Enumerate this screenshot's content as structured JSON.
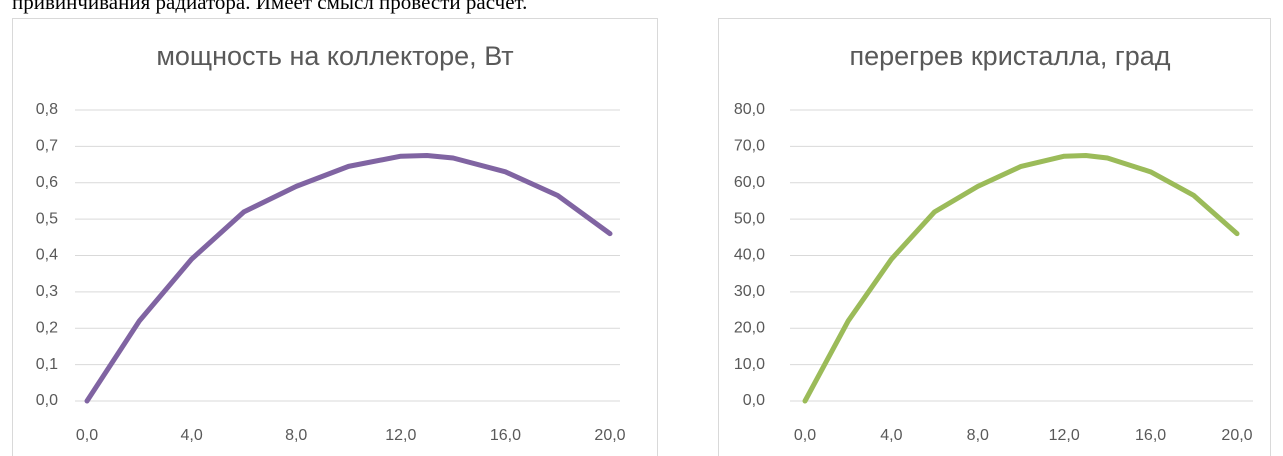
{
  "text": "привинчивания радиатора. Имеет смысл провести расчёт.",
  "chart_data": [
    {
      "type": "line",
      "title": "мощность на коллекторе, Вт",
      "x": [
        0,
        2,
        4,
        6,
        8,
        10,
        12,
        13,
        14,
        16,
        18,
        20
      ],
      "series": [
        {
          "color": "#8064a2",
          "values": [
            0,
            0.22,
            0.39,
            0.52,
            0.59,
            0.645,
            0.673,
            0.675,
            0.668,
            0.63,
            0.565,
            0.46
          ]
        }
      ],
      "xlim": [
        0,
        20
      ],
      "xticks": [
        {
          "value": 0,
          "label": "0,0"
        },
        {
          "value": 4,
          "label": "4,0"
        },
        {
          "value": 8,
          "label": "8,0"
        },
        {
          "value": 12,
          "label": "12,0"
        },
        {
          "value": 16,
          "label": "16,0"
        },
        {
          "value": 20,
          "label": "20,0"
        }
      ],
      "ylim": [
        0,
        0.8
      ],
      "yticks": [
        {
          "value": 0,
          "label": "0,0"
        },
        {
          "value": 0.1,
          "label": "0,1"
        },
        {
          "value": 0.2,
          "label": "0,2"
        },
        {
          "value": 0.3,
          "label": "0,3"
        },
        {
          "value": 0.4,
          "label": "0,4"
        },
        {
          "value": 0.5,
          "label": "0,5"
        },
        {
          "value": 0.6,
          "label": "0,6"
        },
        {
          "value": 0.7,
          "label": "0,7"
        },
        {
          "value": 0.8,
          "label": "0,8"
        }
      ],
      "grid": true
    },
    {
      "type": "line",
      "title": "перегрев кристалла, град",
      "x": [
        0,
        2,
        4,
        6,
        8,
        10,
        12,
        13,
        14,
        16,
        18,
        20
      ],
      "series": [
        {
          "color": "#9bbb59",
          "values": [
            0,
            22,
            39,
            52,
            59,
            64.5,
            67.3,
            67.5,
            66.8,
            63,
            56.5,
            46
          ]
        }
      ],
      "xlim": [
        0,
        20
      ],
      "xticks": [
        {
          "value": 0,
          "label": "0,0"
        },
        {
          "value": 4,
          "label": "4,0"
        },
        {
          "value": 8,
          "label": "8,0"
        },
        {
          "value": 12,
          "label": "12,0"
        },
        {
          "value": 16,
          "label": "16,0"
        },
        {
          "value": 20,
          "label": "20,0"
        }
      ],
      "ylim": [
        0,
        80
      ],
      "yticks": [
        {
          "value": 0,
          "label": "0,0"
        },
        {
          "value": 10,
          "label": "10,0"
        },
        {
          "value": 20,
          "label": "20,0"
        },
        {
          "value": 30,
          "label": "30,0"
        },
        {
          "value": 40,
          "label": "40,0"
        },
        {
          "value": 50,
          "label": "50,0"
        },
        {
          "value": 60,
          "label": "60,0"
        },
        {
          "value": 70,
          "label": "70,0"
        },
        {
          "value": 80,
          "label": "80,0"
        }
      ],
      "grid": true
    }
  ]
}
